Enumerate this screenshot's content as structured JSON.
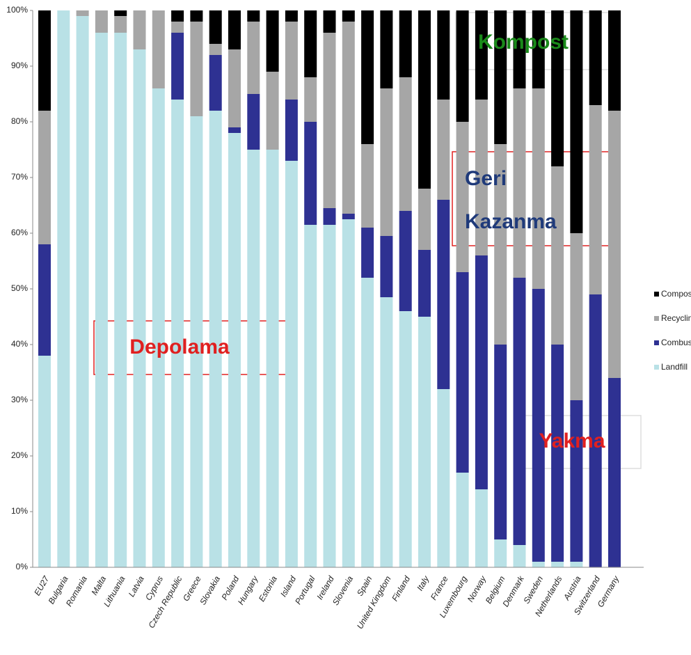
{
  "chart_data": {
    "type": "stacked_bar",
    "categories": [
      "EU27",
      "Bulgaria",
      "Romania",
      "Malta",
      "Lithuania",
      "Latvia",
      "Cyprus",
      "Czech Republic",
      "Greece",
      "Slovakia",
      "Poland",
      "Hungary",
      "Estonia",
      "Island",
      "Portugal",
      "Ireland",
      "Slovenia",
      "Spain",
      "United Kingdom",
      "Finland",
      "Italy",
      "France",
      "Luxembourg",
      "Norway",
      "Belgium",
      "Denmark",
      "Sweden",
      "Netherlands",
      "Austria",
      "Switzerland",
      "Germany"
    ],
    "series": [
      {
        "name": "Landfill",
        "color": "#b9e1e6",
        "values": [
          38,
          100,
          99,
          96,
          96,
          93,
          86,
          84,
          81,
          82,
          78,
          75,
          75,
          73,
          61.5,
          61.5,
          62.5,
          52,
          48.5,
          46,
          45,
          32,
          17,
          14,
          5,
          4,
          1,
          1,
          1,
          0,
          0
        ]
      },
      {
        "name": "Combustion",
        "color": "#2e3192",
        "values": [
          20,
          0,
          0,
          0,
          0,
          0,
          0,
          12,
          0,
          10,
          1,
          10,
          0,
          11,
          18.5,
          3,
          1,
          9,
          11,
          18,
          12,
          34,
          36,
          42,
          35,
          48,
          49,
          39,
          29,
          49,
          34
        ]
      },
      {
        "name": "Recycling",
        "color": "#a6a6a6",
        "values": [
          24,
          0,
          1,
          4,
          3,
          7,
          14,
          2,
          17,
          2,
          14,
          13,
          14,
          14,
          8,
          31.5,
          34.5,
          15,
          26.5,
          24,
          11,
          18,
          27,
          28,
          36,
          34,
          36,
          32,
          30,
          34,
          48
        ]
      },
      {
        "name": "Compost",
        "color": "#000000",
        "values": [
          18,
          0,
          0,
          0,
          1,
          0,
          0,
          2,
          2,
          6,
          7,
          2,
          11,
          2,
          12,
          4,
          2,
          24,
          14,
          12,
          32,
          16,
          20,
          16,
          24,
          14,
          14,
          28,
          40,
          17,
          18
        ]
      }
    ],
    "ylim": [
      0,
      100
    ],
    "yticks": [
      {
        "value": 0,
        "label": "0%"
      },
      {
        "value": 10,
        "label": "10%"
      },
      {
        "value": 20,
        "label": "20%"
      },
      {
        "value": 30,
        "label": "30%"
      },
      {
        "value": 40,
        "label": "40%"
      },
      {
        "value": 50,
        "label": "50%"
      },
      {
        "value": 60,
        "label": "60%"
      },
      {
        "value": 70,
        "label": "70%"
      },
      {
        "value": 80,
        "label": "80%"
      },
      {
        "value": 90,
        "label": "90%"
      },
      {
        "value": 100,
        "label": "100%"
      }
    ],
    "annotations": [
      "Kompost",
      "Geri",
      "Kazanma",
      "Depolama",
      "Yakma"
    ]
  }
}
